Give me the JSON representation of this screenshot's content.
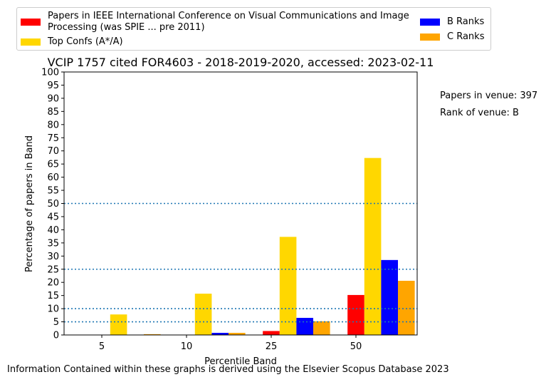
{
  "legend": {
    "items": [
      {
        "label": "Papers in IEEE International Conference on Visual Communications and Image Processing (was SPIE ... pre 2011)",
        "color": "#ff0000"
      },
      {
        "label": "Top Confs (A*/A)",
        "color": "#ffd700"
      },
      {
        "label": "B Ranks",
        "color": "#0000ff"
      },
      {
        "label": "C Ranks",
        "color": "#ffa500"
      }
    ]
  },
  "side_info": {
    "papers_in_venue": "Papers in venue: 397",
    "rank_of_venue": "Rank of venue: B"
  },
  "footer": "Information Contained within these graphs is derived using the Elsevier Scopus Database 2023",
  "chart_data": {
    "type": "bar",
    "title": "VCIP 1757 cited FOR4603 - 2018-2019-2020, accessed: 2023-02-11",
    "xlabel": "Percentile Band",
    "ylabel": "Percentage of papers in Band",
    "categories": [
      "5",
      "10",
      "25",
      "50"
    ],
    "ylim": [
      0,
      100
    ],
    "yticks": [
      0,
      5,
      10,
      15,
      20,
      25,
      30,
      35,
      40,
      45,
      50,
      55,
      60,
      65,
      70,
      75,
      80,
      85,
      90,
      95,
      100
    ],
    "reference_lines": [
      5,
      10,
      25,
      50
    ],
    "series": [
      {
        "name": "Papers in IEEE International Conference on Visual Communications and Image Processing (was SPIE ... pre 2011)",
        "color": "#ff0000",
        "values": [
          0,
          0,
          1.5,
          15.2
        ]
      },
      {
        "name": "Top Confs (A*/A)",
        "color": "#ffd700",
        "values": [
          7.8,
          15.7,
          37.3,
          67.3
        ]
      },
      {
        "name": "B Ranks",
        "color": "#0000ff",
        "values": [
          0,
          0.8,
          6.5,
          28.5
        ]
      },
      {
        "name": "C Ranks",
        "color": "#ffa500",
        "values": [
          0.3,
          0.8,
          5.2,
          20.6
        ]
      }
    ]
  }
}
